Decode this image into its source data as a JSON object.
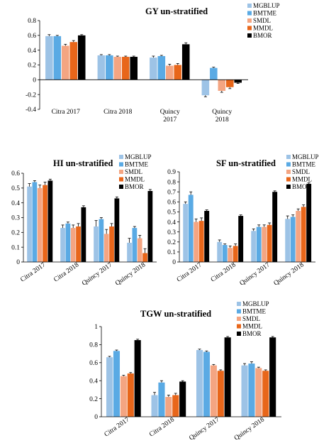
{
  "colors": {
    "MGBLUP": "#9dc3e6",
    "BMTME": "#5aaae4",
    "SMDL": "#f4a582",
    "MMDL": "#e8661a",
    "BMOR": "#000000"
  },
  "chart_data": [
    {
      "type": "bar",
      "title": "GY un-stratified",
      "categories": [
        "Citra 2017",
        "Citra 2018",
        "Quincy 2017",
        "Quincy 2018"
      ],
      "ylim": [
        -0.4,
        0.8
      ],
      "yticks": [
        "0.8",
        "0.6",
        "0.4",
        "0.2",
        "0",
        "-0.2",
        "-0.4"
      ],
      "grid": false,
      "legend": "top-right",
      "series": [
        {
          "name": "MGBLUP",
          "values": [
            0.59,
            0.33,
            0.3,
            -0.21
          ],
          "errors": [
            0.02,
            0.01,
            0.02,
            0.02
          ]
        },
        {
          "name": "BMTME",
          "values": [
            0.59,
            0.33,
            0.32,
            0.16
          ],
          "errors": [
            0.01,
            0.01,
            0.01,
            0.01
          ]
        },
        {
          "name": "SMDL",
          "values": [
            0.46,
            0.31,
            0.19,
            -0.15
          ],
          "errors": [
            0.02,
            0.01,
            0.02,
            0.02
          ]
        },
        {
          "name": "MMDL",
          "values": [
            0.51,
            0.31,
            0.2,
            -0.1
          ],
          "errors": [
            0.02,
            0.01,
            0.02,
            0.02
          ]
        },
        {
          "name": "BMOR",
          "values": [
            0.6,
            0.31,
            0.48,
            -0.04
          ],
          "errors": [
            0.01,
            0.01,
            0.02,
            0.01
          ]
        }
      ]
    },
    {
      "type": "bar",
      "title": "HI un-stratified",
      "categories": [
        "Citra 2017",
        "Citra 2018",
        "Quincy 2017",
        "Quincy 2018"
      ],
      "ylim": [
        0,
        0.6
      ],
      "yticks": [
        "0.6",
        "0.5",
        "0.4",
        "0.3",
        "0.2",
        "0.1",
        "0"
      ],
      "grid": false,
      "legend": "top-right",
      "series": [
        {
          "name": "MGBLUP",
          "values": [
            0.51,
            0.23,
            0.24,
            0.13
          ],
          "errors": [
            0.02,
            0.02,
            0.04,
            0.03
          ]
        },
        {
          "name": "BMTME",
          "values": [
            0.54,
            0.26,
            0.29,
            0.23
          ],
          "errors": [
            0.01,
            0.01,
            0.01,
            0.01
          ]
        },
        {
          "name": "SMDL",
          "values": [
            0.5,
            0.23,
            0.19,
            0.16
          ],
          "errors": [
            0.02,
            0.02,
            0.03,
            0.02
          ]
        },
        {
          "name": "MMDL",
          "values": [
            0.52,
            0.24,
            0.24,
            0.06
          ],
          "errors": [
            0.02,
            0.02,
            0.02,
            0.03
          ]
        },
        {
          "name": "BMOR",
          "values": [
            0.55,
            0.37,
            0.43,
            0.48
          ],
          "errors": [
            0.01,
            0.01,
            0.01,
            0.01
          ]
        }
      ]
    },
    {
      "type": "bar",
      "title": "SF un-stratified",
      "categories": [
        "Citra 2017",
        "Citra 2018",
        "Quincy 2017",
        "Quincy 2018"
      ],
      "ylim": [
        0,
        0.9
      ],
      "yticks": [
        "0.9",
        "0.8",
        "0.7",
        "0.6",
        "0.5",
        "0.4",
        "0.3",
        "0.2",
        "0.1",
        "0"
      ],
      "grid": false,
      "legend": "top-right",
      "series": [
        {
          "name": "MGBLUP",
          "values": [
            0.58,
            0.2,
            0.31,
            0.43
          ],
          "errors": [
            0.02,
            0.02,
            0.02,
            0.03
          ]
        },
        {
          "name": "BMTME",
          "values": [
            0.67,
            0.17,
            0.35,
            0.45
          ],
          "errors": [
            0.03,
            0.01,
            0.02,
            0.02
          ]
        },
        {
          "name": "SMDL",
          "values": [
            0.4,
            0.14,
            0.35,
            0.51
          ],
          "errors": [
            0.03,
            0.02,
            0.02,
            0.02
          ]
        },
        {
          "name": "MMDL",
          "values": [
            0.41,
            0.16,
            0.37,
            0.55
          ],
          "errors": [
            0.03,
            0.02,
            0.02,
            0.02
          ]
        },
        {
          "name": "BMOR",
          "values": [
            0.51,
            0.46,
            0.7,
            0.78
          ],
          "errors": [
            0.01,
            0.01,
            0.01,
            0.01
          ]
        }
      ]
    },
    {
      "type": "bar",
      "title": "TGW un-stratified",
      "categories": [
        "Citra 2017",
        "Citra 2018",
        "Quincy 2017",
        "Quincy 2018"
      ],
      "ylim": [
        0,
        1
      ],
      "yticks": [
        "1",
        "0.8",
        "0.6",
        "0.4",
        "0.2",
        "0"
      ],
      "grid": false,
      "legend": "top-right",
      "series": [
        {
          "name": "MGBLUP",
          "values": [
            0.66,
            0.24,
            0.74,
            0.57
          ],
          "errors": [
            0.01,
            0.03,
            0.01,
            0.02
          ]
        },
        {
          "name": "BMTME",
          "values": [
            0.73,
            0.38,
            0.72,
            0.59
          ],
          "errors": [
            0.01,
            0.02,
            0.01,
            0.02
          ]
        },
        {
          "name": "SMDL",
          "values": [
            0.45,
            0.22,
            0.57,
            0.54
          ],
          "errors": [
            0.01,
            0.02,
            0.01,
            0.01
          ]
        },
        {
          "name": "MMDL",
          "values": [
            0.48,
            0.24,
            0.51,
            0.51
          ],
          "errors": [
            0.01,
            0.02,
            0.01,
            0.01
          ]
        },
        {
          "name": "BMOR",
          "values": [
            0.85,
            0.39,
            0.88,
            0.88
          ],
          "errors": [
            0.01,
            0.01,
            0.01,
            0.01
          ]
        }
      ]
    }
  ]
}
